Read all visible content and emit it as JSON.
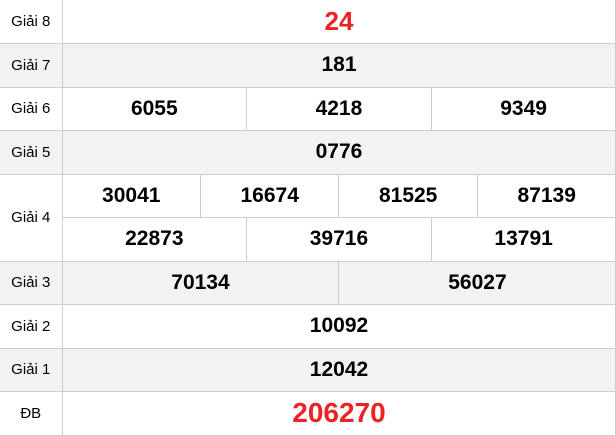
{
  "colors": {
    "accent_red": "#ee2224",
    "row_alt_bg": "#f2f2f2",
    "border": "#cccccc",
    "text": "#000000"
  },
  "table": {
    "rows": [
      {
        "label": "Giải 8",
        "values": [
          "24"
        ],
        "highlight": true
      },
      {
        "label": "Giải 7",
        "values": [
          "181"
        ],
        "highlight": false
      },
      {
        "label": "Giải 6",
        "values": [
          "6055",
          "4218",
          "9349"
        ],
        "highlight": false
      },
      {
        "label": "Giải 5",
        "values": [
          "0776"
        ],
        "highlight": false
      },
      {
        "label": "Giải 4",
        "values": [
          "30041",
          "16674",
          "81525",
          "87139",
          "22873",
          "39716",
          "13791"
        ],
        "highlight": false
      },
      {
        "label": "Giải 3",
        "values": [
          "70134",
          "56027"
        ],
        "highlight": false
      },
      {
        "label": "Giải 2",
        "values": [
          "10092"
        ],
        "highlight": false
      },
      {
        "label": "Giải 1",
        "values": [
          "12042"
        ],
        "highlight": false
      },
      {
        "label": "ĐB",
        "values": [
          "206270"
        ],
        "highlight": true
      }
    ]
  }
}
